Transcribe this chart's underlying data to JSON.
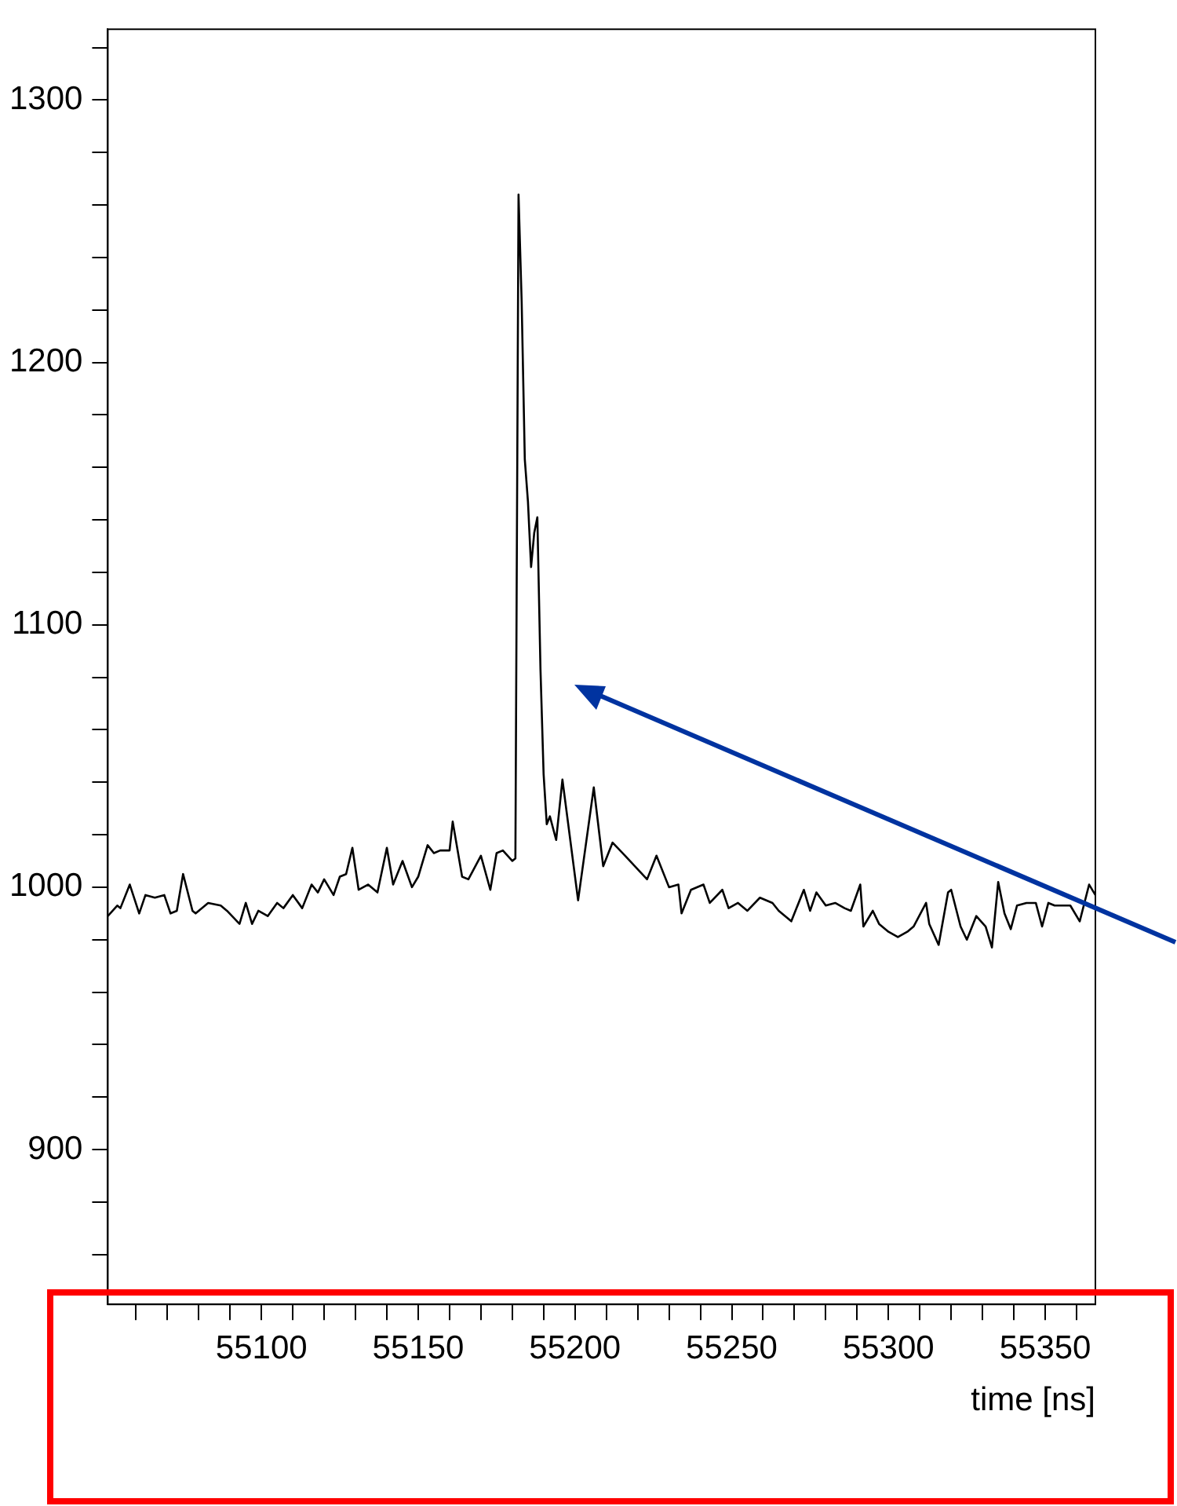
{
  "chart_data": {
    "type": "line",
    "xlabel": "time [ns]",
    "x": [
      55051,
      55054,
      55055,
      55058,
      55061,
      55063,
      55066,
      55069,
      55071,
      55073,
      55075,
      55078,
      55079,
      55083,
      55087,
      55089,
      55093,
      55095,
      55097,
      55099,
      55102,
      55105,
      55107,
      55110,
      55113,
      55116,
      55118,
      55120,
      55123,
      55125,
      55127,
      55129,
      55131,
      55134,
      55137,
      55140,
      55142,
      55145,
      55148,
      55150,
      55153,
      55155,
      55157,
      55160,
      55161,
      55164,
      55166,
      55170,
      55173,
      55175,
      55177,
      55180,
      55181,
      55182,
      55183,
      55184,
      55185,
      55186,
      55187,
      55188,
      55189,
      55190,
      55191,
      55192,
      55194,
      55196,
      55201,
      55206,
      55209,
      55212,
      55216,
      55223,
      55226,
      55230,
      55233,
      55234,
      55237,
      55241,
      55243,
      55247,
      55249,
      55252,
      55255,
      55259,
      55263,
      55265,
      55269,
      55273,
      55275,
      55277,
      55280,
      55283,
      55286,
      55288,
      55291,
      55292,
      55295,
      55297,
      55300,
      55303,
      55306,
      55308,
      55312,
      55313,
      55316,
      55319,
      55320,
      55323,
      55325,
      55328,
      55331,
      55333,
      55335,
      55337,
      55339,
      55341,
      55344,
      55347,
      55349,
      55351,
      55353,
      55356,
      55358,
      55361,
      55364,
      55366
    ],
    "series": [
      {
        "color": "#000000",
        "values": [
          989,
          993,
          992,
          1001,
          990,
          997,
          996,
          997,
          990,
          991,
          1005,
          991,
          990,
          994,
          993,
          991,
          986,
          994,
          986,
          991,
          989,
          994,
          992,
          997,
          992,
          1001,
          998,
          1003,
          997,
          1004,
          1005,
          1015,
          999,
          1001,
          998,
          1015,
          1001,
          1010,
          1000,
          1004,
          1016,
          1013,
          1014,
          1014,
          1025,
          1004,
          1003,
          1012,
          999,
          1013,
          1014,
          1010,
          1011,
          1264,
          1223,
          1163,
          1147,
          1122,
          1135,
          1141,
          1083,
          1043,
          1024,
          1027,
          1018,
          1041,
          995,
          1038,
          1008,
          1017,
          1012,
          1003,
          1012,
          1000,
          1001,
          990,
          999,
          1001,
          994,
          999,
          992,
          994,
          991,
          996,
          994,
          991,
          987,
          999,
          991,
          998,
          993,
          994,
          992,
          991,
          1001,
          985,
          991,
          986,
          983,
          981,
          983,
          985,
          994,
          986,
          978,
          998,
          999,
          985,
          980,
          989,
          985,
          977,
          1002,
          990,
          984,
          993,
          994,
          994,
          985,
          994,
          993,
          993,
          993,
          987,
          1001,
          997
        ]
      }
    ],
    "xlim": [
      55051,
      55366
    ],
    "xticks": [
      {
        "value": 55060,
        "label": null
      },
      {
        "value": 55070,
        "label": null
      },
      {
        "value": 55080,
        "label": null
      },
      {
        "value": 55090,
        "label": null
      },
      55100,
      {
        "value": 55110,
        "label": null
      },
      {
        "value": 55120,
        "label": null
      },
      {
        "value": 55130,
        "label": null
      },
      {
        "value": 55140,
        "label": null
      },
      55150,
      {
        "value": 55160,
        "label": null
      },
      {
        "value": 55170,
        "label": null
      },
      {
        "value": 55180,
        "label": null
      },
      {
        "value": 55190,
        "label": null
      },
      55200,
      {
        "value": 55210,
        "label": null
      },
      {
        "value": 55220,
        "label": null
      },
      {
        "value": 55230,
        "label": null
      },
      {
        "value": 55240,
        "label": null
      },
      55250,
      {
        "value": 55260,
        "label": null
      },
      {
        "value": 55270,
        "label": null
      },
      {
        "value": 55280,
        "label": null
      },
      {
        "value": 55290,
        "label": null
      },
      55300,
      {
        "value": 55310,
        "label": null
      },
      {
        "value": 55320,
        "label": null
      },
      {
        "value": 55330,
        "label": null
      },
      {
        "value": 55340,
        "label": null
      },
      55350,
      {
        "value": 55360,
        "label": null
      }
    ],
    "ylim": [
      841,
      1327
    ],
    "yticks": [
      {
        "value": 860,
        "label": null
      },
      {
        "value": 880,
        "label": null
      },
      900,
      {
        "value": 920,
        "label": null
      },
      {
        "value": 940,
        "label": null
      },
      {
        "value": 960,
        "label": null
      },
      {
        "value": 980,
        "label": null
      },
      1000,
      {
        "value": 1020,
        "label": null
      },
      {
        "value": 1040,
        "label": null
      },
      {
        "value": 1060,
        "label": null
      },
      {
        "value": 1080,
        "label": null
      },
      1100,
      {
        "value": 1120,
        "label": null
      },
      {
        "value": 1140,
        "label": null
      },
      {
        "value": 1160,
        "label": null
      },
      {
        "value": 1180,
        "label": null
      },
      1200,
      {
        "value": 1220,
        "label": null
      },
      {
        "value": 1240,
        "label": null
      },
      {
        "value": 1260,
        "label": null
      },
      {
        "value": 1280,
        "label": null
      },
      1300,
      {
        "value": 1320,
        "label": null
      }
    ],
    "grid": false,
    "legend": false,
    "marker": "none",
    "line_style": "solid"
  }
}
